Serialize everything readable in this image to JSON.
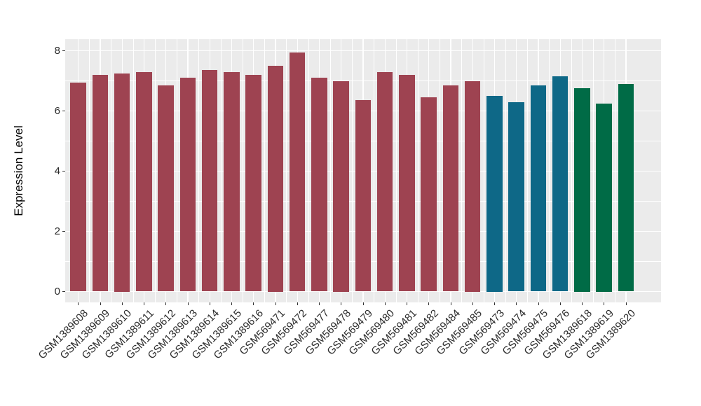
{
  "figure": {
    "background": "#FFFFFF",
    "panel_background": "#EBEBEB",
    "gridline_color": "#FFFFFF",
    "axis_text_color": "#2B2B2B",
    "axis_title_color": "#000000",
    "tick_mark_color": "#333333"
  },
  "chart_data": {
    "type": "bar",
    "title": "",
    "xlabel": "",
    "ylabel": "Expression Level",
    "ylim": [
      -0.4,
      8.4
    ],
    "yticks": [
      0,
      2,
      4,
      6,
      8
    ],
    "y_minor_ticks": [
      1,
      3,
      5,
      7
    ],
    "grid": "on",
    "legend": "none",
    "categories": [
      "GSM1389608",
      "GSM1389609",
      "GSM1389610",
      "GSM1389611",
      "GSM1389612",
      "GSM1389613",
      "GSM1389614",
      "GSM1389615",
      "GSM1389616",
      "GSM569471",
      "GSM569472",
      "GSM569477",
      "GSM569478",
      "GSM569479",
      "GSM569480",
      "GSM569481",
      "GSM569482",
      "GSM569484",
      "GSM569485",
      "GSM569473",
      "GSM569474",
      "GSM569475",
      "GSM569476",
      "GSM1389618",
      "GSM1389619",
      "GSM1389620"
    ],
    "values": [
      6.95,
      7.2,
      7.25,
      7.3,
      6.85,
      7.1,
      7.35,
      7.3,
      7.2,
      7.5,
      7.95,
      7.1,
      7.0,
      6.35,
      7.3,
      7.2,
      6.45,
      6.85,
      7.0,
      6.5,
      6.3,
      6.85,
      7.15,
      6.75,
      6.25,
      6.9
    ],
    "groups": [
      "maroon",
      "maroon",
      "maroon",
      "maroon",
      "maroon",
      "maroon",
      "maroon",
      "maroon",
      "maroon",
      "maroon",
      "maroon",
      "maroon",
      "maroon",
      "maroon",
      "maroon",
      "maroon",
      "maroon",
      "maroon",
      "maroon",
      "teal",
      "teal",
      "teal",
      "teal",
      "green",
      "green",
      "green"
    ],
    "group_colors": {
      "maroon": "#9E4351",
      "teal": "#0E6887",
      "green": "#006B46"
    }
  }
}
